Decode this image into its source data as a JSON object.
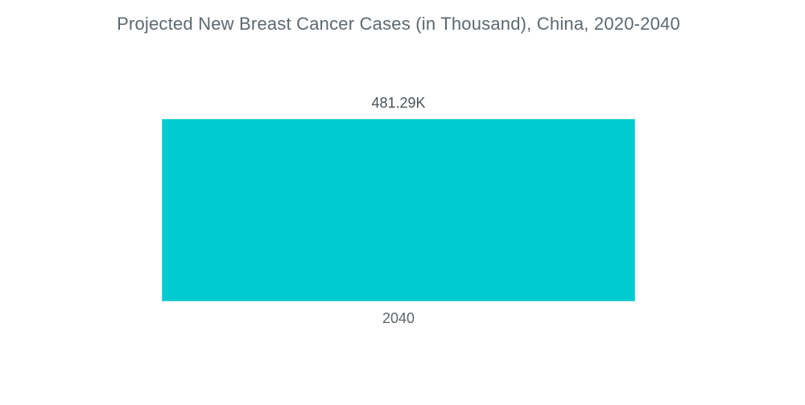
{
  "chart_data": {
    "type": "bar",
    "title": "Projected New Breast Cancer Cases (in Thousand), China, 2020-2040",
    "categories": [
      "2040"
    ],
    "values": [
      481.29
    ],
    "value_labels": [
      "481.29K"
    ],
    "xlabel": "",
    "ylabel": "",
    "ylim": [
      0,
      505
    ],
    "grid": false,
    "legend": "none",
    "bar_color": "#00cbd2",
    "background_color": "#ffffff",
    "title_color": "#5d686f",
    "label_color": "#4b5359"
  }
}
